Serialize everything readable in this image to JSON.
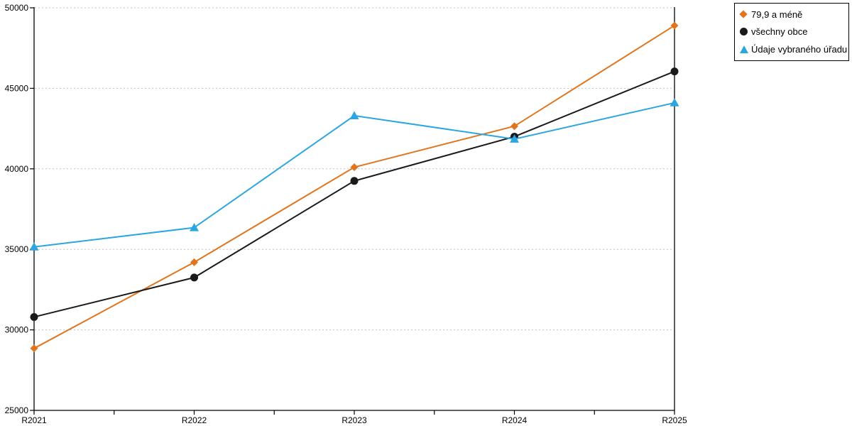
{
  "chart_data": {
    "type": "line",
    "title": "",
    "xlabel": "",
    "ylabel": "",
    "x_categories": [
      "R2021",
      "R2022",
      "R2023",
      "R2024",
      "R2025"
    ],
    "y_ticks": [
      25000,
      30000,
      35000,
      40000,
      45000,
      50000
    ],
    "y_tick_labels": [
      "25000",
      "30000",
      "35000",
      "40000",
      "45000",
      "50000"
    ],
    "ylim": [
      25000,
      50000
    ],
    "grid": "horizontal dotted gridlines at each y tick above axis",
    "legend_position": "outside top-right, boxed",
    "series": [
      {
        "name": "79,9 a méně",
        "marker": "diamond",
        "color": "#e0751e",
        "values": [
          28850,
          34200,
          40100,
          42650,
          48900
        ]
      },
      {
        "name": "všechny obce",
        "marker": "circle",
        "color": "#1a1a1a",
        "values": [
          30800,
          33250,
          39250,
          42000,
          46050
        ]
      },
      {
        "name": "Údaje vybraného úřadu",
        "marker": "triangle-up",
        "color": "#2ba6df",
        "values": [
          35150,
          36350,
          43300,
          41850,
          44100
        ]
      }
    ]
  },
  "colors": {
    "background": "#ffffff",
    "axis": "#000000",
    "gridline": "#c4c4c4",
    "text": "#000000"
  }
}
